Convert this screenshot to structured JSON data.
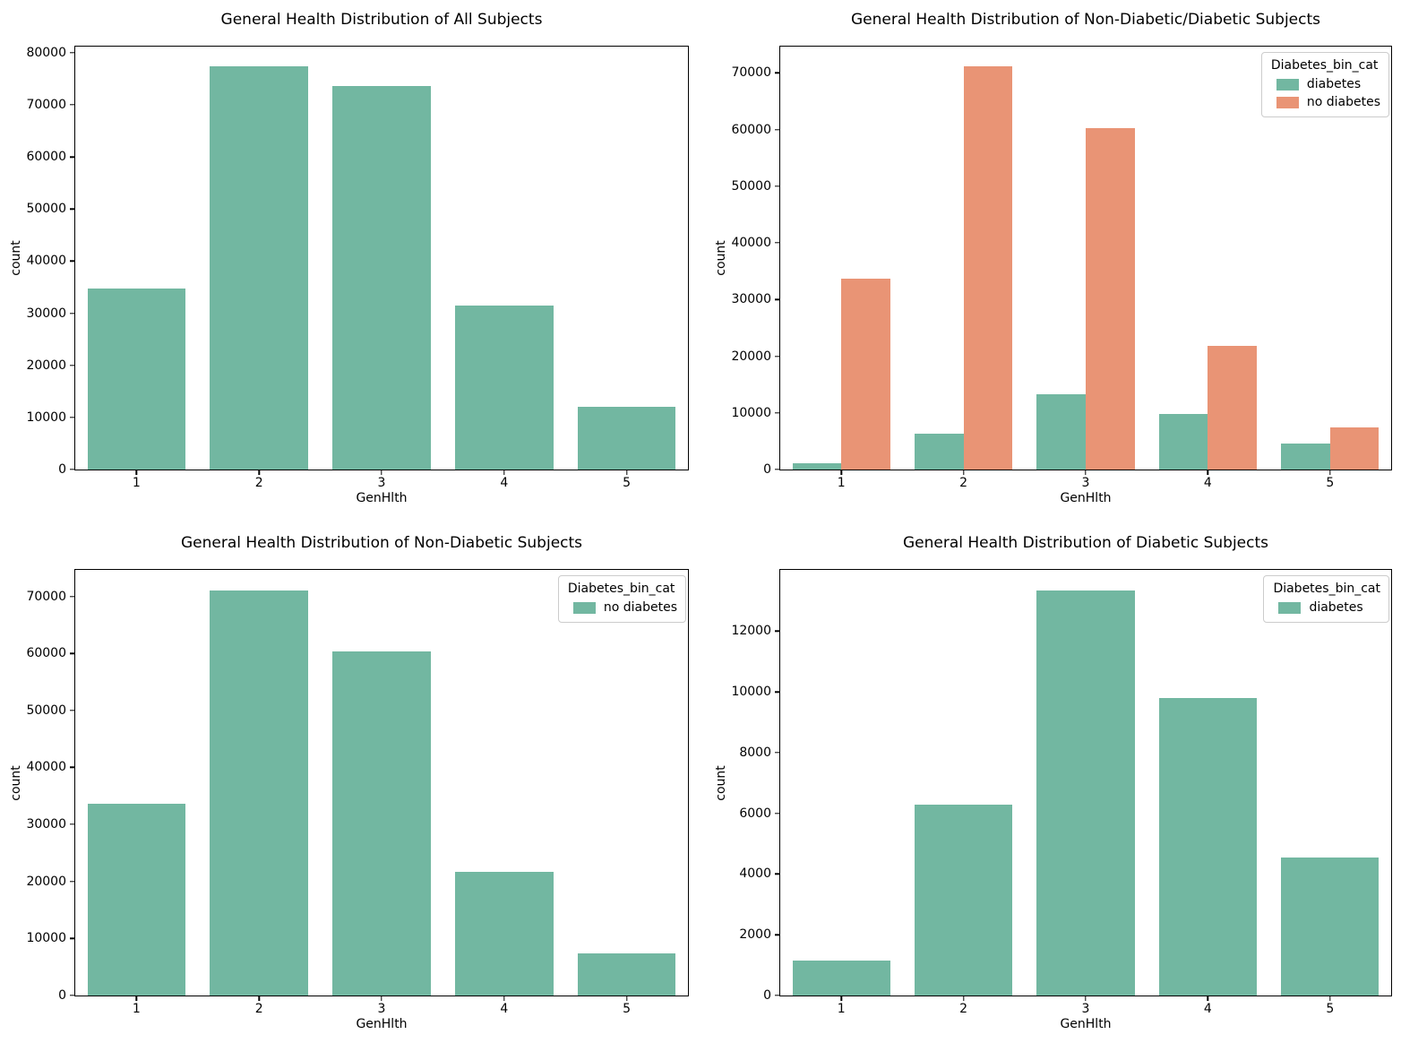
{
  "figure": {
    "background": "#ffffff",
    "palette": {
      "green": "#72b7a1",
      "orange": "#e99475"
    },
    "axis_color": "#000000",
    "legend_border_color": "#cccccc"
  },
  "chart_data": [
    {
      "type": "bar",
      "title": "General Health Distribution of All Subjects",
      "xlabel": "GenHlth",
      "ylabel": "count",
      "categories": [
        "1",
        "2",
        "3",
        "4",
        "5"
      ],
      "series": [
        {
          "label": null,
          "color": "#72b7a1",
          "values": [
            34800,
            77350,
            73600,
            31500,
            12000
          ]
        }
      ],
      "yticks": [
        0,
        10000,
        20000,
        30000,
        40000,
        50000,
        60000,
        70000,
        80000
      ],
      "ylim": [
        0,
        81200
      ],
      "grid": false,
      "legend": null
    },
    {
      "type": "bar",
      "title": "General Health Distribution of Non-Diabetic/Diabetic Subjects",
      "xlabel": "GenHlth",
      "ylabel": "count",
      "categories": [
        "1",
        "2",
        "3",
        "4",
        "5"
      ],
      "series": [
        {
          "label": "diabetes",
          "color": "#72b7a1",
          "values": [
            1150,
            6300,
            13350,
            9800,
            4550
          ]
        },
        {
          "label": "no diabetes",
          "color": "#e99475",
          "values": [
            33650,
            71100,
            60300,
            21750,
            7400
          ]
        }
      ],
      "yticks": [
        0,
        10000,
        20000,
        30000,
        40000,
        50000,
        60000,
        70000
      ],
      "ylim": [
        0,
        74650
      ],
      "grid": false,
      "legend": {
        "title": "Diabetes_bin_cat",
        "position": "upper right",
        "entries": [
          {
            "label": "diabetes",
            "color": "#72b7a1"
          },
          {
            "label": "no diabetes",
            "color": "#e99475"
          }
        ]
      }
    },
    {
      "type": "bar",
      "title": "General Health Distribution of Non-Diabetic Subjects",
      "xlabel": "GenHlth",
      "ylabel": "count",
      "categories": [
        "1",
        "2",
        "3",
        "4",
        "5"
      ],
      "series": [
        {
          "label": "no diabetes",
          "color": "#72b7a1",
          "values": [
            33650,
            71100,
            60300,
            21750,
            7400
          ]
        }
      ],
      "yticks": [
        0,
        10000,
        20000,
        30000,
        40000,
        50000,
        60000,
        70000
      ],
      "ylim": [
        0,
        74650
      ],
      "grid": false,
      "legend": {
        "title": "Diabetes_bin_cat",
        "position": "upper right",
        "entries": [
          {
            "label": "no diabetes",
            "color": "#72b7a1"
          }
        ]
      }
    },
    {
      "type": "bar",
      "title": "General Health Distribution of Diabetic Subjects",
      "xlabel": "GenHlth",
      "ylabel": "count",
      "categories": [
        "1",
        "2",
        "3",
        "4",
        "5"
      ],
      "series": [
        {
          "label": "diabetes",
          "color": "#72b7a1",
          "values": [
            1150,
            6300,
            13350,
            9800,
            4550
          ]
        }
      ],
      "yticks": [
        0,
        2000,
        4000,
        6000,
        8000,
        10000,
        12000
      ],
      "ylim": [
        0,
        14020
      ],
      "grid": false,
      "legend": {
        "title": "Diabetes_bin_cat",
        "position": "upper right",
        "entries": [
          {
            "label": "diabetes",
            "color": "#72b7a1"
          }
        ]
      }
    }
  ]
}
